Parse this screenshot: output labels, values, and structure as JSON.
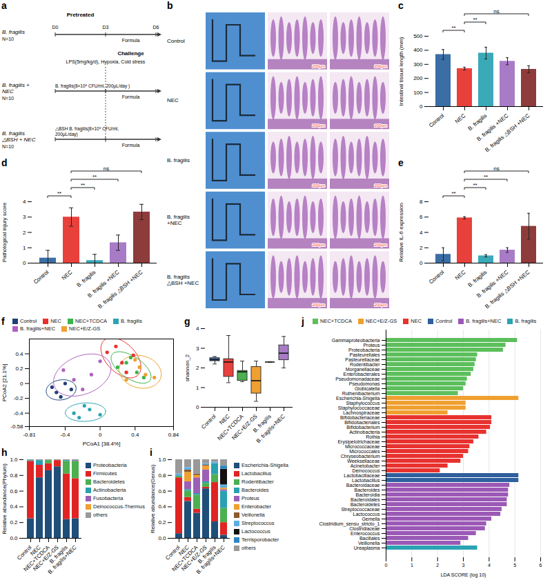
{
  "chart_data": [
    {
      "panel": "c",
      "type": "bar",
      "categories": [
        "Control",
        "NEC",
        "B. fragilis",
        "B. fragilis +NEC",
        "B. fragilis △BSH +NEC"
      ],
      "values": [
        370,
        270,
        380,
        322,
        265
      ],
      "errors": [
        35,
        10,
        42,
        25,
        25
      ],
      "colors": [
        "#3a6ea5",
        "#e8413c",
        "#3aa9b8",
        "#a87bc7",
        "#8e3b3b"
      ],
      "y_label": "Intestinal tissue length (mm)",
      "ylim": [
        0,
        500
      ],
      "yticks": [
        0,
        100,
        200,
        300,
        400,
        500
      ],
      "comparisons": [
        {
          "from": "Control",
          "to": "NEC",
          "label": "**"
        },
        {
          "from": "NEC",
          "to": "B. fragilis",
          "label": "**"
        },
        {
          "from": "NEC",
          "to": "B. fragilis △BSH +NEC",
          "label": "ns"
        }
      ]
    },
    {
      "panel": "d",
      "type": "bar",
      "categories": [
        "Control",
        "NEC",
        "B. fragilis",
        "B. fragilis +NEC",
        "B. fragilis △BSH +NEC"
      ],
      "values": [
        0.33,
        3.0,
        0.17,
        1.33,
        3.33
      ],
      "errors": [
        0.5,
        0.6,
        0.4,
        0.5,
        0.5
      ],
      "colors": [
        "#3a6ea5",
        "#e8413c",
        "#3aa9b8",
        "#a87bc7",
        "#8e3b3b"
      ],
      "y_label": "Pathological injury score",
      "ylim": [
        0,
        4
      ],
      "yticks": [
        0,
        1,
        2,
        3,
        4
      ],
      "comparisons": [
        {
          "from": "Control",
          "to": "NEC",
          "label": "**"
        },
        {
          "from": "NEC",
          "to": "B. fragilis",
          "label": "**"
        },
        {
          "from": "NEC",
          "to": "B. fragilis +NEC",
          "label": "**"
        },
        {
          "from": "NEC",
          "to": "B. fragilis △BSH +NEC",
          "label": "ns"
        }
      ]
    },
    {
      "panel": "e",
      "type": "bar",
      "categories": [
        "Control",
        "NEC",
        "B. fragilis",
        "B. fragilis +NEC",
        "B. fragilis △BSH +NEC"
      ],
      "values": [
        1.15,
        5.9,
        0.95,
        1.7,
        4.8
      ],
      "errors": [
        0.85,
        0.15,
        0.15,
        0.3,
        1.7
      ],
      "colors": [
        "#3a6ea5",
        "#e8413c",
        "#3aa9b8",
        "#a87bc7",
        "#8e3b3b"
      ],
      "y_label": "Relative IL-6 expression",
      "ylim": [
        0,
        8
      ],
      "yticks": [
        0,
        2,
        4,
        6,
        8
      ],
      "comparisons": [
        {
          "from": "Control",
          "to": "NEC",
          "label": "**"
        },
        {
          "from": "NEC",
          "to": "B. fragilis",
          "label": "**"
        },
        {
          "from": "NEC",
          "to": "B. fragilis +NEC",
          "label": "**"
        },
        {
          "from": "NEC",
          "to": "B. fragilis △BSH +NEC",
          "label": "ns"
        }
      ]
    },
    {
      "panel": "f",
      "type": "scatter",
      "x_label": "PCoA1 [38.4%]",
      "y_label": "PCoA2 [21.1%]",
      "xlim": [
        -0.81,
        0.84
      ],
      "xticks": [
        -0.81,
        -0.4,
        0,
        0.4,
        0.84
      ],
      "ylim": [
        -0.58,
        0.6
      ],
      "yticks": [
        -0.58,
        -0.4,
        -0.2,
        0,
        0.2,
        0.4
      ],
      "legend": "top",
      "series": [
        {
          "name": "Control",
          "color": "#1f3f7a",
          "x": [
            -0.55,
            -0.5,
            -0.45,
            -0.4,
            -0.33
          ],
          "y": [
            -0.05,
            -0.12,
            -0.18,
            0.0,
            -0.08
          ]
        },
        {
          "name": "NEC",
          "color": "#e8322f",
          "x": [
            0.08,
            0.18,
            0.25,
            0.38,
            0.3
          ],
          "y": [
            0.42,
            0.5,
            0.28,
            0.38,
            0.15
          ]
        },
        {
          "name": "NEC+TCDCA",
          "color": "#3cb44b",
          "x": [
            0.2,
            0.3,
            0.42,
            0.5,
            0.35
          ],
          "y": [
            0.22,
            0.28,
            0.15,
            0.08,
            0.35
          ]
        },
        {
          "name": "B. fragilis",
          "color": "#2aa3b3",
          "x": [
            -0.3,
            -0.24,
            -0.12,
            -0.18,
            0.0
          ],
          "y": [
            -0.4,
            -0.46,
            -0.35,
            -0.3,
            -0.42
          ]
        },
        {
          "name": "B. fragilis+NEC",
          "color": "#b060c0",
          "x": [
            -0.42,
            -0.3,
            -0.1,
            0.0,
            -0.2
          ],
          "y": [
            0.18,
            0.05,
            0.12,
            0.3,
            -0.08
          ]
        },
        {
          "name": "NEC+E/Z-GS",
          "color": "#f0a030",
          "x": [
            0.3,
            0.45,
            0.52,
            0.62,
            0.4
          ],
          "y": [
            0.05,
            0.22,
            0.12,
            0.08,
            0.32
          ]
        }
      ]
    },
    {
      "panel": "g",
      "type": "box",
      "categories": [
        "Control",
        "NEC",
        "NEC+TCDCA",
        "NEC+E/Z-GS",
        "B. fragilis",
        "B. fragilis+NEC"
      ],
      "min": [
        2.2,
        1.25,
        1.3,
        0.3,
        2.3,
        2.0
      ],
      "q1": [
        2.35,
        1.55,
        1.35,
        0.7,
        2.3,
        2.4
      ],
      "median": [
        2.42,
        2.3,
        1.8,
        1.35,
        2.3,
        2.75
      ],
      "q3": [
        2.5,
        2.45,
        1.85,
        2.05,
        2.3,
        3.15
      ],
      "max": [
        2.58,
        3.65,
        2.35,
        2.35,
        2.3,
        3.6
      ],
      "colors": [
        "#3a6ea5",
        "#e8413c",
        "#4caf50",
        "#f0a030",
        "#3aa9b8",
        "#a87bc7"
      ],
      "y_label": "shannon_2",
      "ylim": [
        0,
        4
      ],
      "yticks": [
        0,
        1,
        2,
        3,
        4
      ]
    },
    {
      "panel": "h",
      "type": "bar",
      "stacked": true,
      "legend": "right",
      "categories": [
        "Control",
        "NEC",
        "NEC+TCDCA",
        "NEC+E/Z-GS",
        "B. fragilis",
        "B. fragilis+NEC"
      ],
      "y_label": "Relative abundance(Phylum)",
      "ylim": [
        0,
        1
      ],
      "yticks": [
        {
          "value": 0,
          "label": "0.0"
        },
        0.2,
        0.4,
        0.6,
        0.8,
        {
          "value": 1,
          "label": "1.0"
        }
      ],
      "series": [
        {
          "name": "Proteobacteria",
          "color": "#1f4e79",
          "values": [
            0.25,
            0.77,
            0.86,
            0.91,
            0.24,
            0.25
          ]
        },
        {
          "name": "Firmicutes",
          "color": "#e02424",
          "values": [
            0.73,
            0.16,
            0.09,
            0.08,
            0.58,
            0.51
          ]
        },
        {
          "name": "Bacteroidetes",
          "color": "#4caf50",
          "values": [
            0,
            0,
            0.04,
            0,
            0.16,
            0.22
          ]
        },
        {
          "name": "Actinobacteria",
          "color": "#2aa0b0",
          "values": [
            0.01,
            0.06,
            0,
            0,
            0.01,
            0
          ]
        },
        {
          "name": "Fusobacteria",
          "color": "#9c5fb5",
          "values": [
            0,
            0,
            0,
            0,
            0,
            0.01
          ]
        },
        {
          "name": "Deinococcus-Thermus",
          "color": "#f0a030",
          "values": [
            0,
            0,
            0,
            0,
            0,
            0
          ]
        },
        {
          "name": "others",
          "color": "#999999",
          "values": [
            0.01,
            0.01,
            0.01,
            0.01,
            0.01,
            0.01
          ]
        }
      ]
    },
    {
      "panel": "i",
      "type": "bar",
      "stacked": true,
      "legend": "right",
      "categories": [
        "Control",
        "NEC",
        "NEC+TCDCA",
        "NEC+E/Z-GS",
        "B. fragilis",
        "B. fragilis+NEC"
      ],
      "y_label": "Relative abundance(Genus)",
      "ylim": [
        0,
        1
      ],
      "yticks": [
        {
          "value": 0,
          "label": "0.0"
        },
        0.2,
        0.4,
        0.6,
        0.8,
        {
          "value": 1,
          "label": "1.0"
        }
      ],
      "series": [
        {
          "name": "Escherichia-Shigella",
          "color": "#1f4e79",
          "values": [
            0.06,
            0.47,
            0.32,
            0.63,
            0.21,
            0.04
          ]
        },
        {
          "name": "Lactobacillus",
          "color": "#e02424",
          "values": [
            0.71,
            0.05,
            0.05,
            0.02,
            0.5,
            0.16
          ]
        },
        {
          "name": "Rodentibacter",
          "color": "#4caf50",
          "values": [
            0.02,
            0.08,
            0.18,
            0.05,
            0.1,
            0.18
          ]
        },
        {
          "name": "Bacteroides",
          "color": "#2aa0b0",
          "values": [
            0,
            0.02,
            0.02,
            0.02,
            0.14,
            0.22
          ]
        },
        {
          "name": "Proteus",
          "color": "#9c5fb5",
          "values": [
            0,
            0.1,
            0.2,
            0.15,
            0,
            0.02
          ]
        },
        {
          "name": "Enterobacter",
          "color": "#f0a030",
          "values": [
            0,
            0.12,
            0.03,
            0.05,
            0,
            0.02
          ]
        },
        {
          "name": "Veillonella",
          "color": "#8b5a2b",
          "values": [
            0,
            0.03,
            0.02,
            0.01,
            0,
            0
          ]
        },
        {
          "name": "Streptococcus",
          "color": "#5dade2",
          "values": [
            0.03,
            0.03,
            0,
            0.02,
            0.02,
            0.04
          ]
        },
        {
          "name": "Lactococcus",
          "color": "#111111",
          "values": [
            0,
            0,
            0,
            0,
            0,
            0.2
          ]
        },
        {
          "name": "Terrisporobacter",
          "color": "#2e86c1",
          "values": [
            0,
            0,
            0,
            0,
            0,
            0.04
          ]
        },
        {
          "name": "others",
          "color": "#999999",
          "values": [
            0.18,
            0.1,
            0.18,
            0.05,
            0.03,
            0.08
          ]
        }
      ]
    },
    {
      "panel": "j",
      "type": "bar",
      "orientation": "horizontal",
      "grid": true,
      "legend": "top",
      "x_label": "LDA SCORE (log 10)",
      "xlim": [
        0,
        6
      ],
      "xticks": [
        0,
        1,
        2,
        3,
        4,
        5,
        6
      ],
      "series": [
        {
          "name": "NEC+TCDCA",
          "color": "#5cbf5c",
          "categories": [
            "Gammaproteobacteria",
            "Proteus",
            "Proteobacteria",
            "Pasteurellales",
            "Pasteurellaceae",
            "Rodentibacter",
            "Morganellaceae",
            "Enterobacterales",
            "Pseudomonadaceae",
            "Pseudomonas",
            "Globicatella",
            "Ruthenibacterium"
          ],
          "values": [
            5.1,
            4.65,
            4.55,
            3.55,
            3.5,
            3.45,
            3.4,
            3.3,
            3.15,
            3.1,
            3.0,
            2.8
          ]
        },
        {
          "name": "NEC+E/Z-GS",
          "color": "#f0a030",
          "categories": [
            "Escherichia-Shigella",
            "Staphylococcus",
            "Staphylococcaceae",
            "Lachnospiraceae"
          ],
          "values": [
            5.15,
            3.1,
            3.1,
            2.4
          ]
        },
        {
          "name": "NEC",
          "color": "#e8322f",
          "categories": [
            "Bifidobacteriaceae",
            "Bifidobacteriales",
            "Bifidobacterium",
            "Actinobacteria",
            "Rothia",
            "Erysipelotrichaceae",
            "Micrococcaceae",
            "Micrococcales",
            "Chryseobacterium",
            "Weeksellaceae",
            "Acinetobacter",
            "Deinococcus"
          ],
          "values": [
            4.1,
            4.1,
            4.05,
            3.9,
            3.6,
            3.4,
            3.25,
            3.2,
            3.0,
            2.9,
            2.4,
            2.1
          ]
        },
        {
          "name": "Control",
          "color": "#2e5f9e",
          "categories": [
            "Lactobacillaceae",
            "Lactobacillus"
          ],
          "values": [
            5.15,
            5.15
          ]
        },
        {
          "name": "B. fragilis+NEC",
          "color": "#9b59b6",
          "categories": [
            "Bacteroidaceae",
            "Bacteroides",
            "Bacteroidia",
            "Bacteroidales",
            "Bacteroidetes",
            "Streptococcaceae",
            "Lactococcus",
            "Gemella",
            "Clostridium_sensu_stricto_1",
            "Clostridiaceae",
            "Enterococcus",
            "Bacillales",
            "Veillonella"
          ],
          "values": [
            4.8,
            4.75,
            4.75,
            4.7,
            4.7,
            4.5,
            4.45,
            4.1,
            3.9,
            3.85,
            3.5,
            3.2,
            2.9
          ]
        },
        {
          "name": "B. fragilis",
          "color": "#2aa3b3",
          "categories": [
            "Ureaplasma"
          ],
          "values": [
            3.55
          ]
        }
      ]
    }
  ],
  "diagrams": [
    {
      "panel": "a",
      "header": "Pretreated",
      "challenge": "Challenge",
      "challenge_conditions": "LPS(5mg/kg/d), Hypoxia, Cold stress",
      "days": [
        "D0",
        "D3",
        "D6"
      ],
      "groups": [
        {
          "label": "B. fragilis",
          "n": "N=10",
          "feeding": "Formula"
        },
        {
          "label": "B. fragilis + NEC",
          "n": "N=10",
          "treatment": "B. fragilis(8×10⁸ CFU/ml, 200μL/day )",
          "feeding": "Formula"
        },
        {
          "label": "B. fragilis △BSH + NEC",
          "n": "N=10",
          "treatment": "△BSH B. fragilis(8×10⁸ CFU/ml, 200μL/day)",
          "feeding": "Formula"
        }
      ]
    },
    {
      "panel": "b",
      "rows": [
        "Control",
        "NEC",
        "B. fragilis",
        "B. fragilis +NEC",
        "B. fragilis △BSH +NEC"
      ],
      "scale_bar": "200μm"
    }
  ]
}
